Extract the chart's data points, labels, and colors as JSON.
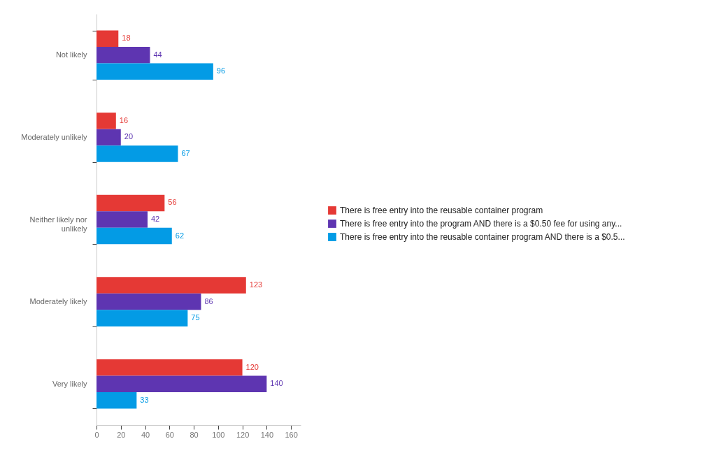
{
  "chart_data": {
    "type": "bar",
    "orientation": "horizontal",
    "categories": [
      "Not likely",
      "Moderately unlikely",
      "Neither likely nor unlikely",
      "Moderately likely",
      "Very likely"
    ],
    "series": [
      {
        "name": "There is free entry into the reusable container program",
        "color": "#e53935",
        "values": [
          18,
          16,
          56,
          123,
          120
        ]
      },
      {
        "name": "There is free entry into the program AND there is a $0.50 fee for using any...",
        "color": "#5e35b1",
        "values": [
          44,
          20,
          42,
          86,
          140
        ]
      },
      {
        "name": "There is free entry into the reusable container program AND there is a $0.5...",
        "color": "#039be5",
        "values": [
          96,
          67,
          62,
          75,
          33
        ]
      }
    ],
    "xlim": [
      0,
      168
    ],
    "xticks": [
      0,
      20,
      40,
      60,
      80,
      100,
      120,
      140,
      160
    ],
    "data_labels": true,
    "grid": false,
    "legend": "right"
  }
}
